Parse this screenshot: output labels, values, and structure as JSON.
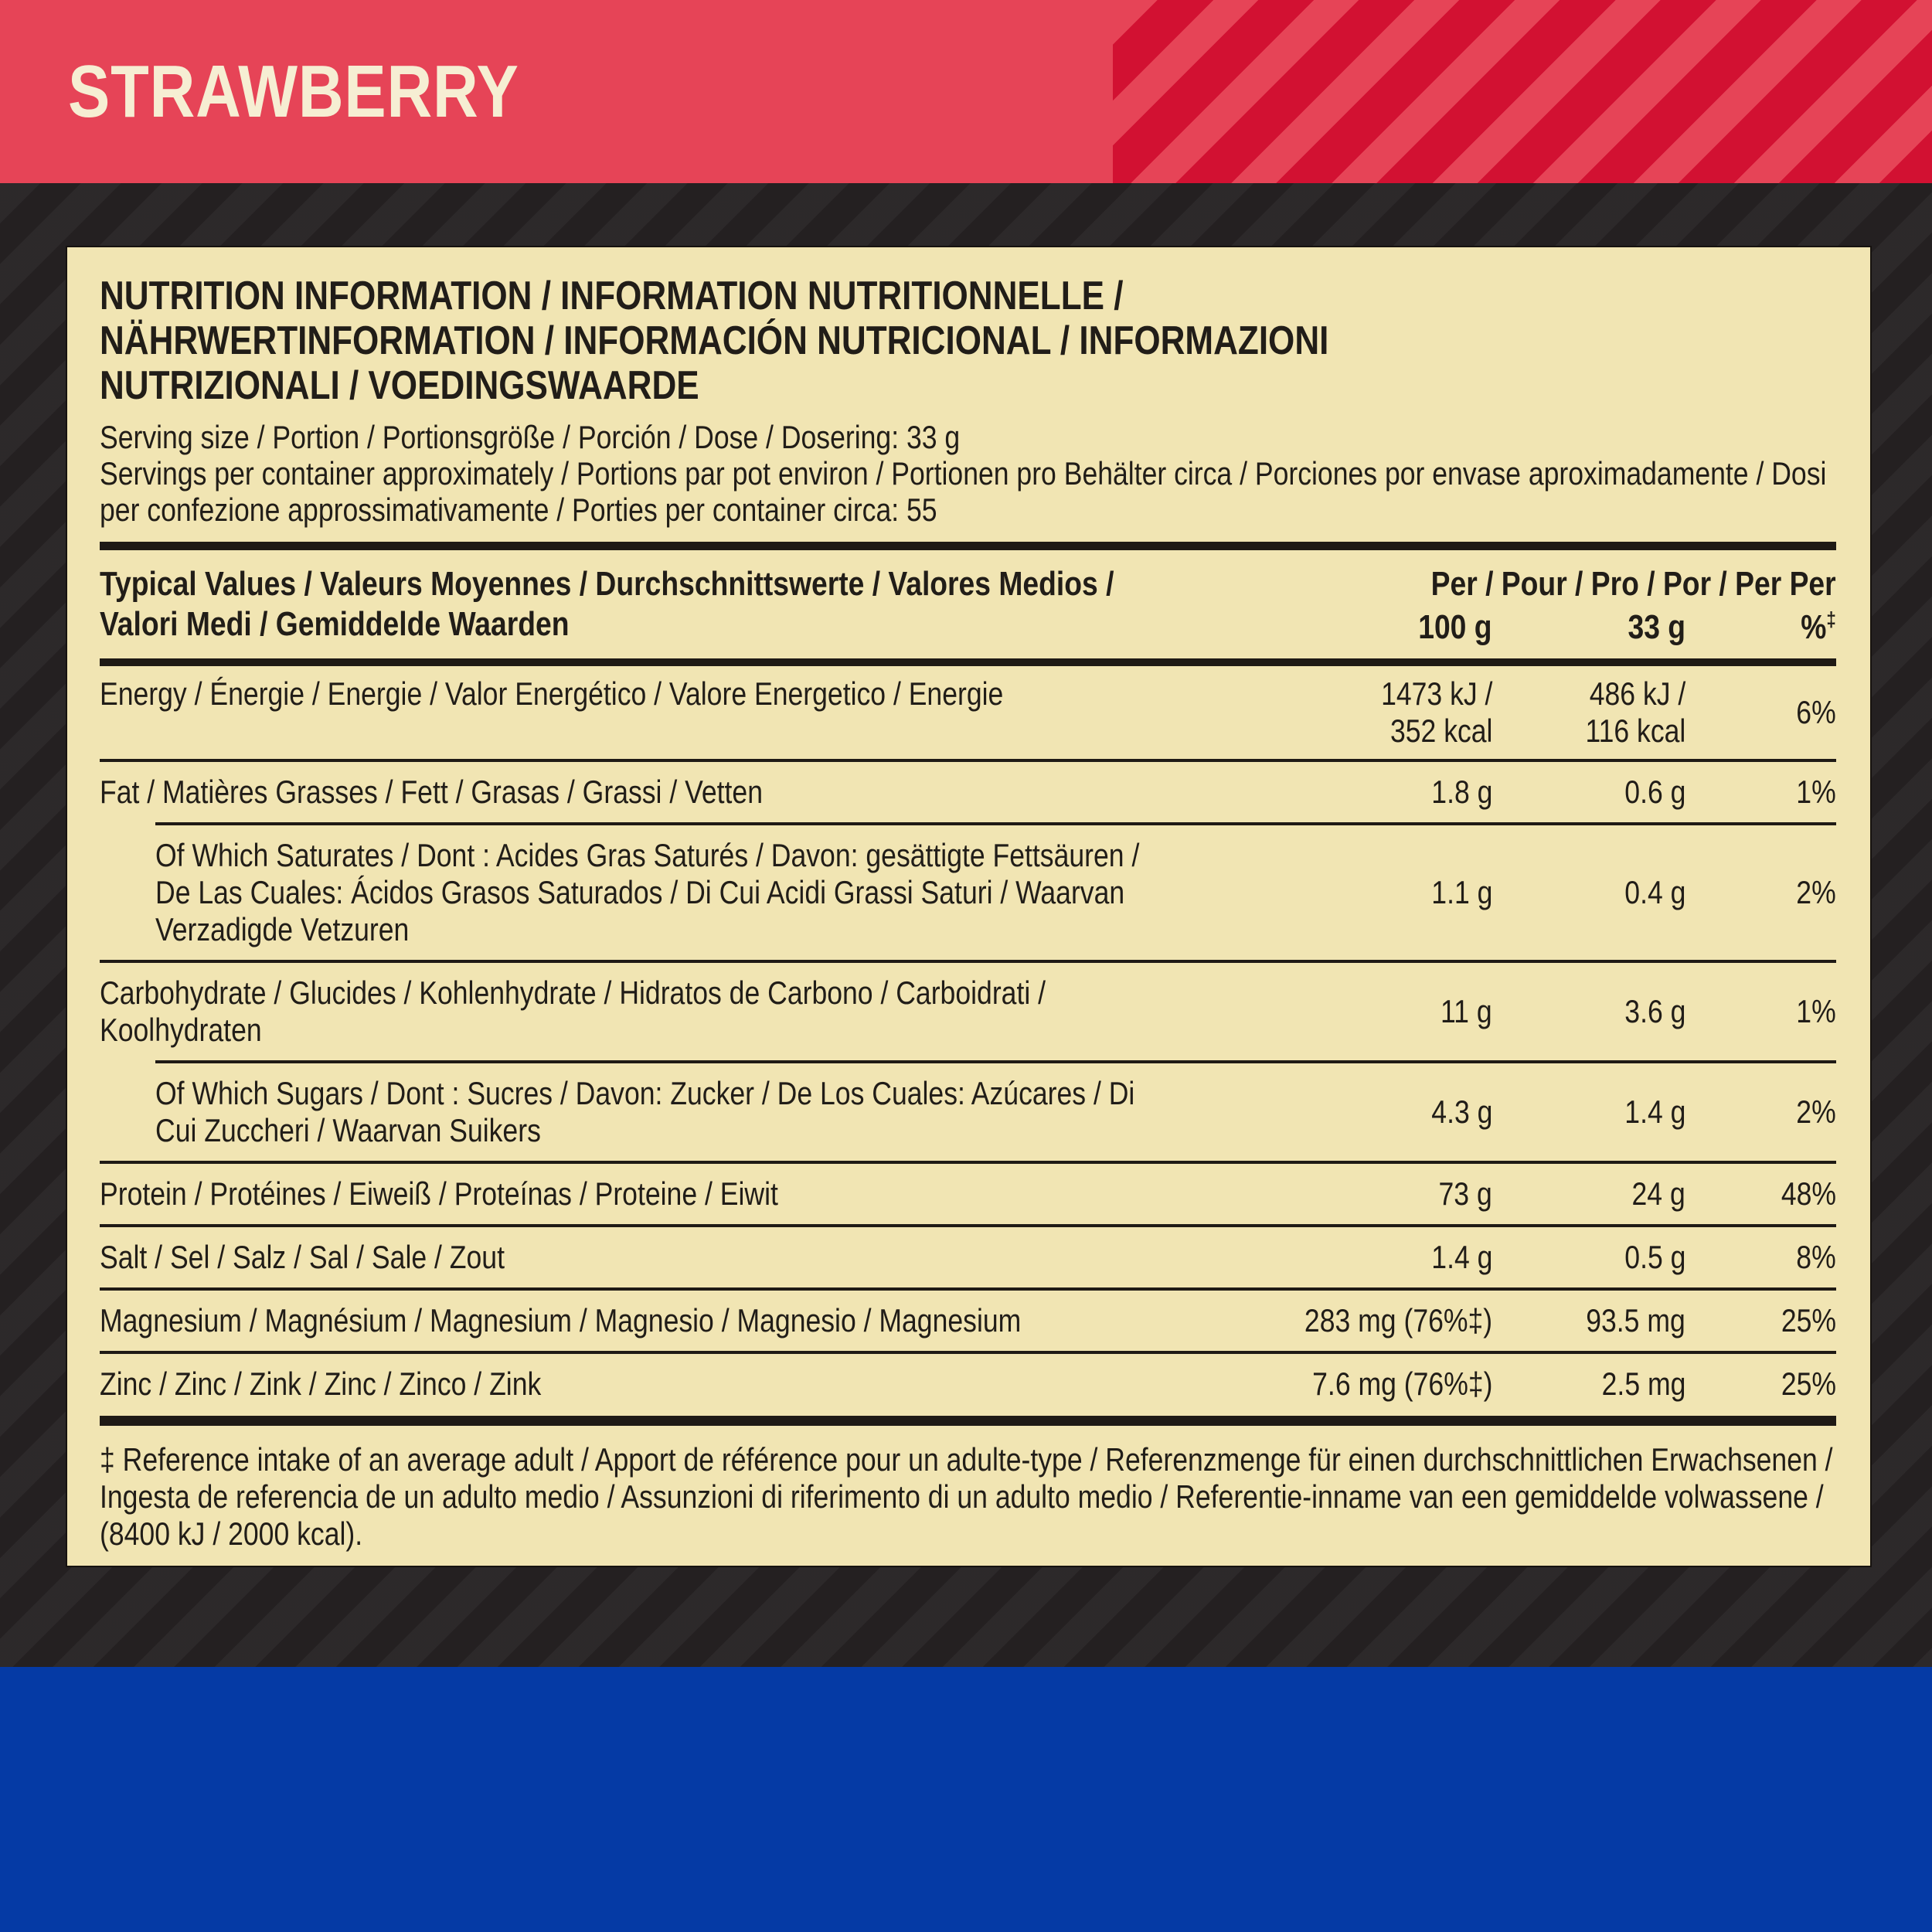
{
  "colors": {
    "banner_red": "#e64457",
    "banner_stripe_red": "#d21132",
    "background_dark": "#242021",
    "panel_cream": "#f1e5b3",
    "text_black": "#211d18",
    "bottom_blue": "#053aa5",
    "title_cream": "#f6eed3"
  },
  "banner": {
    "flavor": "STRAWBERRY"
  },
  "panel": {
    "heading_lines": [
      "NUTRITION INFORMATION / INFORMATION NUTRITIONNELLE /",
      "NÄHRWERTINFORMATION / INFORMACIÓN NUTRICIONAL / INFORMAZIONI",
      "NUTRIZIONALI / VOEDINGSWAARDE"
    ],
    "serving_size": "Serving size / Portion / Portionsgröße / Porción / Dose / Dosering: 33 g",
    "servings_per_container": "Servings per container approximately / Portions par pot environ / Portionen pro Behälter circa / Porciones por envase aproximadamente / Dosi per confezione approssimativamente / Porties per container circa: 55",
    "table": {
      "header_label": "Typical Values / Valeurs Moyennes / Durchschnittswerte / Valores Medios / Valori Medi / Gemiddelde Waarden",
      "header_values_label": "Per / Pour / Pro / Por / Per Per",
      "col_per_100g": "100 g",
      "col_per_33g": "33 g",
      "col_pct_symbol": "%",
      "col_pct_mark": "‡",
      "rows": [
        {
          "label": "Energy / Énergie / Energie / Valor Energético / Valore Energetico / Energie",
          "per_100g": "1473 kJ /\n352 kcal",
          "per_33g": "486 kJ /\n116 kcal",
          "ri_pct": "6%"
        },
        {
          "label": "Fat / Matières Grasses / Fett / Grasas / Grassi / Vetten",
          "per_100g": "1.8 g",
          "per_33g": "0.6 g",
          "ri_pct": "1%"
        },
        {
          "label": "Of Which Saturates / Dont : Acides Gras Saturés / Davon: gesättigte Fettsäuren / De Las Cuales: Ácidos Grasos Saturados / Di Cui Acidi Grassi Saturi / Waarvan Verzadigde Vetzuren",
          "per_100g": "1.1 g",
          "per_33g": "0.4 g",
          "ri_pct": "2%"
        },
        {
          "label": "Carbohydrate / Glucides / Kohlenhydrate / Hidratos de Carbono / Carboidrati / Koolhydraten",
          "per_100g": "11 g",
          "per_33g": "3.6 g",
          "ri_pct": "1%"
        },
        {
          "label": "Of Which Sugars / Dont : Sucres / Davon: Zucker / De Los Cuales: Azúcares / Di Cui Zuccheri / Waarvan Suikers",
          "per_100g": "4.3 g",
          "per_33g": "1.4 g",
          "ri_pct": "2%"
        },
        {
          "label": "Protein / Protéines / Eiweiß / Proteínas / Proteine / Eiwit",
          "per_100g": "73 g",
          "per_33g": "24 g",
          "ri_pct": "48%"
        },
        {
          "label": "Salt / Sel / Salz / Sal / Sale / Zout",
          "per_100g": "1.4 g",
          "per_33g": "0.5 g",
          "ri_pct": "8%"
        },
        {
          "label": "Magnesium / Magnésium / Magnesium / Magnesio / Magnesio / Magnesium",
          "per_100g": "283 mg (76%‡)",
          "per_33g": "93.5 mg",
          "ri_pct": "25%"
        },
        {
          "label": "Zinc / Zinc / Zink / Zinc / Zinco / Zink",
          "per_100g": "7.6 mg (76%‡)",
          "per_33g": "2.5 mg",
          "ri_pct": "25%"
        }
      ]
    },
    "footnote": "‡ Reference intake of an average adult / Apport de référence pour un adulte-type / Referenzmenge für einen durchschnittlichen Erwachsenen / Ingesta de referencia de un adulto medio / Assunzioni di riferimento di un adulto medio / Referentie-inname van een gemiddelde volwassene / (8400 kJ / 2000 kcal)."
  }
}
